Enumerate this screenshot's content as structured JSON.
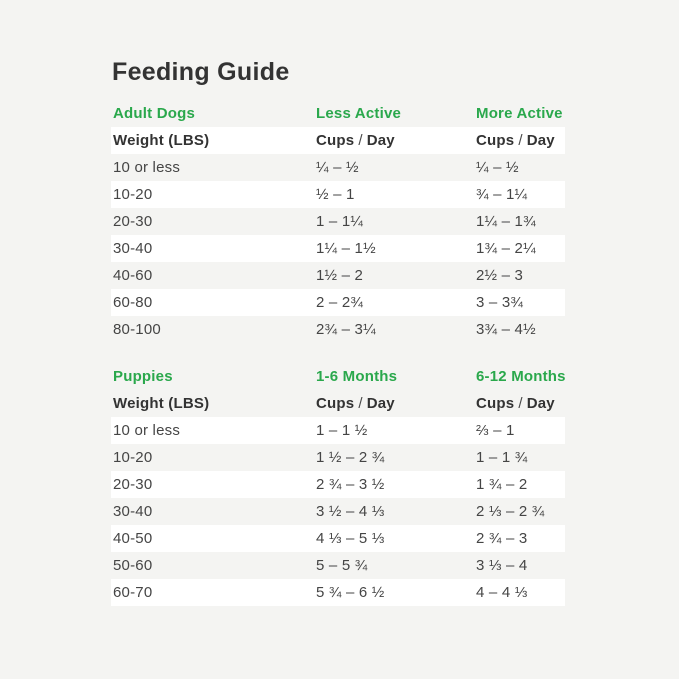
{
  "page": {
    "title": "Feeding Guide"
  },
  "colors": {
    "background": "#f4f4f2",
    "row_highlight": "#ffffff",
    "accent_green": "#2aa84c",
    "title_text": "#333333",
    "body_text": "#454545"
  },
  "chart_data": [
    {
      "type": "table",
      "section_label": "Adult Dogs",
      "activity_labels": [
        "Less Active",
        "More Active"
      ],
      "header": [
        "Weight (LBS)",
        "Cups / Day",
        "Cups / Day"
      ],
      "rows": [
        [
          "10 or less",
          "¼ – ½",
          "¼ – ½"
        ],
        [
          "10-20",
          "½ – 1",
          "¾ – 1¼"
        ],
        [
          "20-30",
          "1 – 1¼",
          "1¼ – 1¾"
        ],
        [
          "30-40",
          "1¼ – 1½",
          "1¾ – 2¼"
        ],
        [
          "40-60",
          "1½ – 2",
          "2½ – 3"
        ],
        [
          "60-80",
          "2 – 2¾",
          "3 – 3¾"
        ],
        [
          "80-100",
          "2¾ – 3¼",
          "3¾ – 4½"
        ]
      ],
      "header_highlighted": true,
      "highlighted_rows": [
        1,
        3,
        5
      ]
    },
    {
      "type": "table",
      "section_label": "Puppies",
      "activity_labels": [
        "1-6 Months",
        "6-12 Months"
      ],
      "header": [
        "Weight (LBS)",
        "Cups / Day",
        "Cups / Day"
      ],
      "rows": [
        [
          "10 or less",
          "1 – 1 ½",
          "⅔ – 1"
        ],
        [
          "10-20",
          "1 ½ – 2 ¾",
          "1 – 1 ¾"
        ],
        [
          "20-30",
          "2 ¾ – 3 ½",
          "1 ¾ – 2"
        ],
        [
          "30-40",
          "3 ½ – 4 ⅓",
          "2 ⅓ – 2 ¾"
        ],
        [
          "40-50",
          "4 ⅓ – 5 ⅓",
          "2 ¾ – 3"
        ],
        [
          "50-60",
          "5 – 5 ¾",
          "3 ⅓ – 4"
        ],
        [
          "60-70",
          "5 ¾ – 6 ½",
          "4 – 4 ⅓"
        ]
      ],
      "header_highlighted": false,
      "highlighted_rows": [
        0,
        2,
        4,
        6
      ]
    }
  ]
}
